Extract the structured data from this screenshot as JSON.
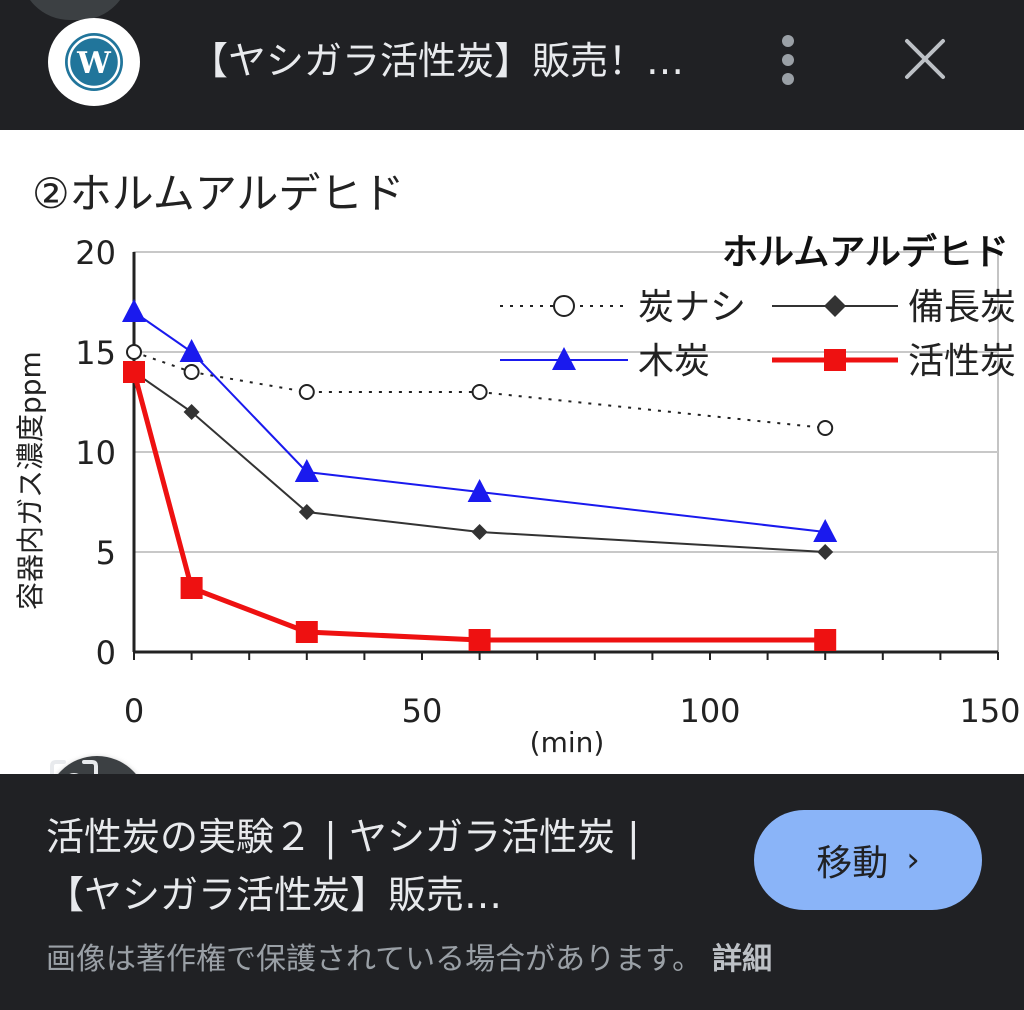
{
  "header": {
    "title": "【ヤシガラ活性炭】販売！…"
  },
  "chart_data": {
    "type": "line",
    "title": "②ホルムアルデヒド",
    "legend_title": "ホルムアルデヒド",
    "xlabel": "(min)",
    "ylabel": "容器内ガス濃度ppm",
    "xlim": [
      0,
      150
    ],
    "ylim": [
      0,
      20
    ],
    "x_ticks": [
      0,
      50,
      100,
      150
    ],
    "y_ticks": [
      0,
      5,
      10,
      15,
      20
    ],
    "grid": true,
    "legend_position": "top-right",
    "series": [
      {
        "name": "炭ナシ",
        "x": [
          0,
          10,
          30,
          60,
          120
        ],
        "y": [
          15,
          14,
          13,
          13,
          11.2
        ],
        "color": "#222222",
        "style": "dotted",
        "marker": "circle"
      },
      {
        "name": "備長炭",
        "x": [
          0,
          10,
          30,
          60,
          120
        ],
        "y": [
          14,
          12,
          7,
          6,
          5
        ],
        "color": "#333333",
        "style": "solid",
        "marker": "diamond"
      },
      {
        "name": "木炭",
        "x": [
          0,
          10,
          30,
          60,
          120
        ],
        "y": [
          17,
          15,
          9,
          8,
          6
        ],
        "color": "#1a1aee",
        "style": "solid",
        "marker": "triangle"
      },
      {
        "name": "活性炭",
        "x": [
          0,
          10,
          30,
          60,
          120
        ],
        "y": [
          14,
          3.2,
          1,
          0.6,
          0.6
        ],
        "color": "#ee1111",
        "style": "solid",
        "marker": "square"
      }
    ]
  },
  "result": {
    "title": "活性炭の実験２ | ヤシガラ活性炭 | 【ヤシガラ活性炭】販売…",
    "visit_label": "移動",
    "visit_chevron": "›",
    "copyright": "画像は著作権で保護されている場合があります。",
    "details_label": "詳細"
  },
  "icons": {
    "site": "wordpress-icon",
    "more": "more-vert-icon",
    "close": "close-icon",
    "lens": "lens-search-icon"
  },
  "colors": {
    "background": "#202124",
    "accent": "#8ab4f8"
  }
}
